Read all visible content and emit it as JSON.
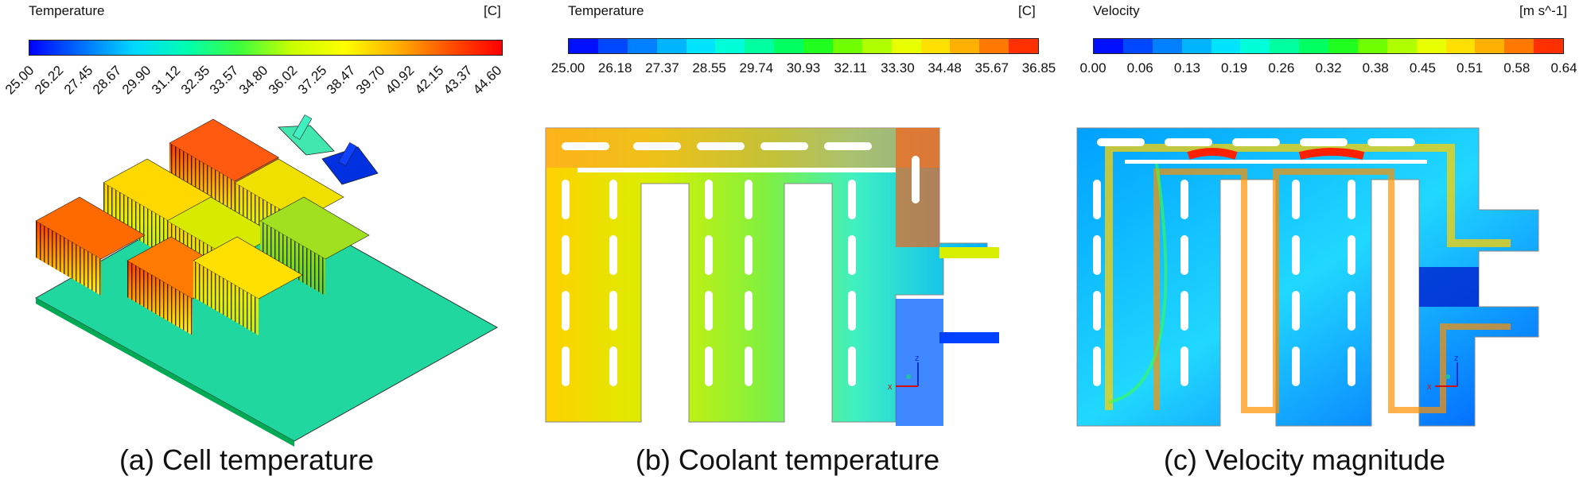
{
  "panels": [
    {
      "variable": "Temperature",
      "unit": "[C]",
      "ticks": [
        "25.00",
        "26.22",
        "27.45",
        "28.67",
        "29.90",
        "31.12",
        "32.35",
        "33.57",
        "34.80",
        "36.02",
        "37.25",
        "38.47",
        "39.70",
        "40.92",
        "42.15",
        "43.37",
        "44.60"
      ],
      "caption": "(a) Cell temperature"
    },
    {
      "variable": "Temperature",
      "unit": "[C]",
      "ticks": [
        "25.00",
        "26.18",
        "27.37",
        "28.55",
        "29.74",
        "30.93",
        "32.11",
        "33.30",
        "34.48",
        "35.67",
        "36.85"
      ],
      "caption": "(b) Coolant temperature"
    },
    {
      "variable": "Velocity",
      "unit": "[m s^-1]",
      "ticks": [
        "0.00",
        "0.06",
        "0.13",
        "0.19",
        "0.26",
        "0.32",
        "0.38",
        "0.45",
        "0.51",
        "0.58",
        "0.64"
      ],
      "caption": "(c) Velocity magnitude"
    }
  ],
  "axes": {
    "z": "z",
    "x": "x"
  },
  "colors": {
    "stepped": [
      "#0010ff",
      "#0048ff",
      "#0080ff",
      "#00b4ff",
      "#00e4ff",
      "#00ffd8",
      "#00ffa0",
      "#00ff60",
      "#20ff20",
      "#70ff00",
      "#b0ff00",
      "#e8ff00",
      "#ffe000",
      "#ffb000",
      "#ff7800",
      "#ff3000"
    ]
  }
}
